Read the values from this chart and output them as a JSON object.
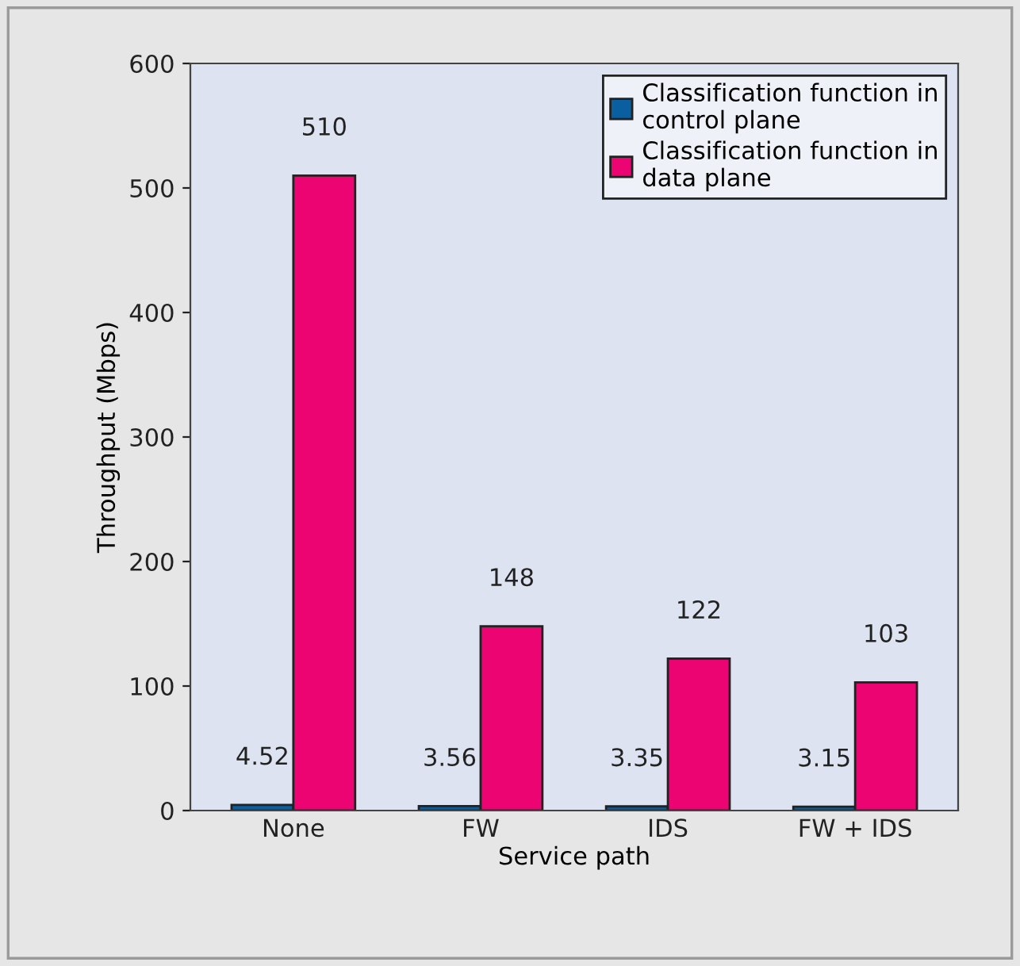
{
  "chart_data": {
    "type": "bar",
    "xlabel": "Service path",
    "ylabel": "Throughput (Mbps)",
    "categories": [
      "None",
      "FW",
      "IDS",
      "FW + IDS"
    ],
    "series": [
      {
        "name": "Classification function in\ncontrol plane",
        "color": "#0a5fa0",
        "values": [
          4.52,
          3.56,
          3.35,
          3.15
        ]
      },
      {
        "name": "Classification function in\ndata plane",
        "color": "#ec0572",
        "values": [
          510,
          148,
          122,
          103
        ]
      }
    ],
    "ylim": [
      0,
      600
    ],
    "yticks": [
      0,
      100,
      200,
      300,
      400,
      500,
      600
    ],
    "grid": false,
    "legend": "top right",
    "data_labels": true
  }
}
